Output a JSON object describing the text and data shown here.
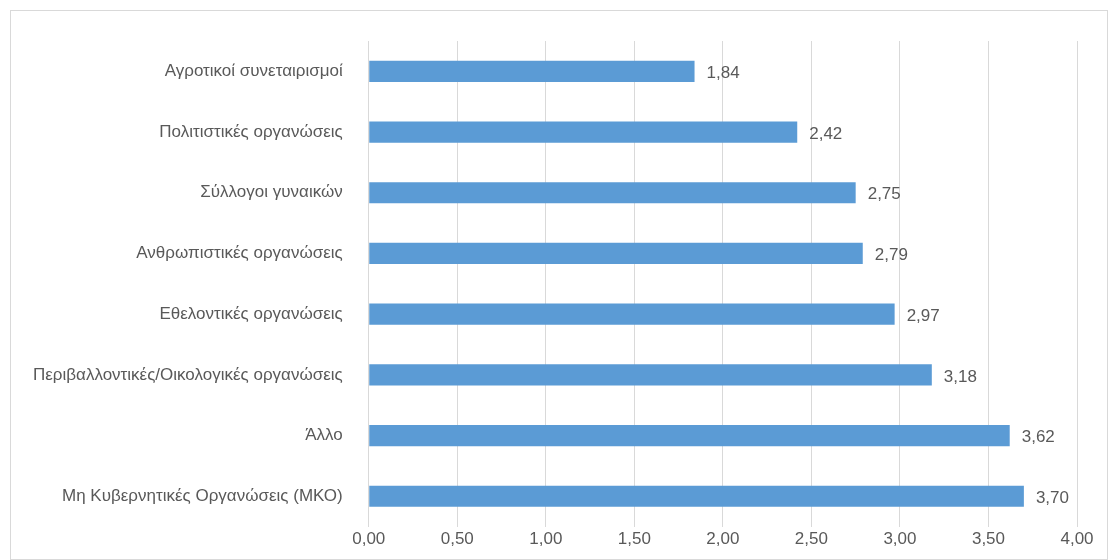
{
  "chart_data": {
    "type": "bar",
    "orientation": "horizontal",
    "categories": [
      "Αγροτικοί συνεταιρισμοί",
      "Πολιτιστικές οργανώσεις",
      "Σύλλογοι γυναικών",
      "Ανθρωπιστικές οργανώσεις",
      "Εθελοντικές οργανώσεις",
      "Περιβαλλοντικές/Οικολογικές οργανώσεις",
      "Άλλο",
      "Μη Κυβερνητικές Οργανώσεις (ΜΚΟ)"
    ],
    "values": [
      1.84,
      2.42,
      2.75,
      2.79,
      2.97,
      3.18,
      3.62,
      3.7
    ],
    "value_labels": [
      "1,84",
      "2,42",
      "2,75",
      "2,79",
      "2,97",
      "3,18",
      "3,62",
      "3,70"
    ],
    "color": "#5b9bd5",
    "xlim": [
      0,
      4
    ],
    "xticks": [
      {
        "value": 0,
        "label": "0,00"
      },
      {
        "value": 0.5,
        "label": "0,50"
      },
      {
        "value": 1,
        "label": "1,00"
      },
      {
        "value": 1.5,
        "label": "1,50"
      },
      {
        "value": 2,
        "label": "2,00"
      },
      {
        "value": 2.5,
        "label": "2,50"
      },
      {
        "value": 3,
        "label": "3,00"
      },
      {
        "value": 3.5,
        "label": "3,50"
      },
      {
        "value": 4,
        "label": "4,00"
      }
    ],
    "grid": "x"
  }
}
